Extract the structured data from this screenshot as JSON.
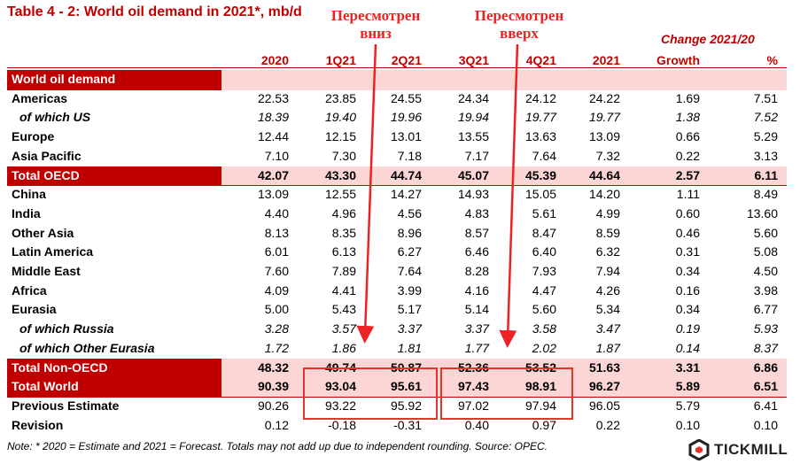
{
  "title": "Table 4 - 2: World oil demand in 2021*, mb/d",
  "change_header": "Change 2021/20",
  "columns": [
    "2020",
    "1Q21",
    "2Q21",
    "3Q21",
    "4Q21",
    "2021",
    "Growth",
    "%"
  ],
  "rows": [
    {
      "label": "World oil demand",
      "type": "section",
      "values": [
        "",
        "",
        "",
        "",
        "",
        "",
        "",
        ""
      ]
    },
    {
      "label": "Americas",
      "type": "normal",
      "values": [
        "22.53",
        "23.85",
        "24.55",
        "24.34",
        "24.12",
        "24.22",
        "1.69",
        "7.51"
      ]
    },
    {
      "label": "of which US",
      "type": "sub",
      "values": [
        "18.39",
        "19.40",
        "19.96",
        "19.94",
        "19.77",
        "19.77",
        "1.38",
        "7.52"
      ]
    },
    {
      "label": "Europe",
      "type": "normal",
      "values": [
        "12.44",
        "12.15",
        "13.01",
        "13.55",
        "13.63",
        "13.09",
        "0.66",
        "5.29"
      ]
    },
    {
      "label": "Asia Pacific",
      "type": "normal",
      "values": [
        "7.10",
        "7.30",
        "7.18",
        "7.17",
        "7.64",
        "7.32",
        "0.22",
        "3.13"
      ]
    },
    {
      "label": "Total OECD",
      "type": "total",
      "values": [
        "42.07",
        "43.30",
        "44.74",
        "45.07",
        "45.39",
        "44.64",
        "2.57",
        "6.11"
      ]
    },
    {
      "label": "China",
      "type": "normal",
      "values": [
        "13.09",
        "12.55",
        "14.27",
        "14.93",
        "15.05",
        "14.20",
        "1.11",
        "8.49"
      ]
    },
    {
      "label": "India",
      "type": "normal",
      "values": [
        "4.40",
        "4.96",
        "4.56",
        "4.83",
        "5.61",
        "4.99",
        "0.60",
        "13.60"
      ]
    },
    {
      "label": "Other Asia",
      "type": "normal",
      "values": [
        "8.13",
        "8.35",
        "8.96",
        "8.57",
        "8.47",
        "8.59",
        "0.46",
        "5.60"
      ]
    },
    {
      "label": "Latin America",
      "type": "normal",
      "values": [
        "6.01",
        "6.13",
        "6.27",
        "6.46",
        "6.40",
        "6.32",
        "0.31",
        "5.08"
      ]
    },
    {
      "label": "Middle East",
      "type": "normal",
      "values": [
        "7.60",
        "7.89",
        "7.64",
        "8.28",
        "7.93",
        "7.94",
        "0.34",
        "4.50"
      ]
    },
    {
      "label": "Africa",
      "type": "normal",
      "values": [
        "4.09",
        "4.41",
        "3.99",
        "4.16",
        "4.47",
        "4.26",
        "0.16",
        "3.98"
      ]
    },
    {
      "label": "Eurasia",
      "type": "normal",
      "values": [
        "5.00",
        "5.43",
        "5.17",
        "5.14",
        "5.60",
        "5.34",
        "0.34",
        "6.77"
      ]
    },
    {
      "label": "of which Russia",
      "type": "sub",
      "values": [
        "3.28",
        "3.57",
        "3.37",
        "3.37",
        "3.58",
        "3.47",
        "0.19",
        "5.93"
      ]
    },
    {
      "label": "of which Other Eurasia",
      "type": "sub",
      "values": [
        "1.72",
        "1.86",
        "1.81",
        "1.77",
        "2.02",
        "1.87",
        "0.14",
        "8.37"
      ]
    },
    {
      "label": "Total Non-OECD",
      "type": "total",
      "values": [
        "48.32",
        "49.74",
        "50.87",
        "52.36",
        "53.52",
        "51.63",
        "3.31",
        "6.86"
      ]
    },
    {
      "label": "Total World",
      "type": "total",
      "values": [
        "90.39",
        "93.04",
        "95.61",
        "97.43",
        "98.91",
        "96.27",
        "5.89",
        "6.51"
      ]
    },
    {
      "label": "Previous Estimate",
      "type": "normal",
      "values": [
        "90.26",
        "93.22",
        "95.92",
        "97.02",
        "97.94",
        "96.05",
        "5.79",
        "6.41"
      ]
    },
    {
      "label": "Revision",
      "type": "normal",
      "values": [
        "0.12",
        "-0.18",
        "-0.31",
        "0.40",
        "0.97",
        "0.22",
        "0.10",
        "0.10"
      ]
    }
  ],
  "note": "Note: * 2020 = Estimate and 2021 = Forecast. Totals may not add up due to independent rounding. Source: OPEC.",
  "annotations": {
    "revised_down": [
      "Пересмотрен",
      "вниз"
    ],
    "revised_up": [
      "Пересмотрен",
      "вверх"
    ]
  },
  "logo_text": "TICKMILL",
  "colors": {
    "accent": "#c00000",
    "highlight_bg": "#fcd5d5",
    "annotation": "#ee2222"
  }
}
